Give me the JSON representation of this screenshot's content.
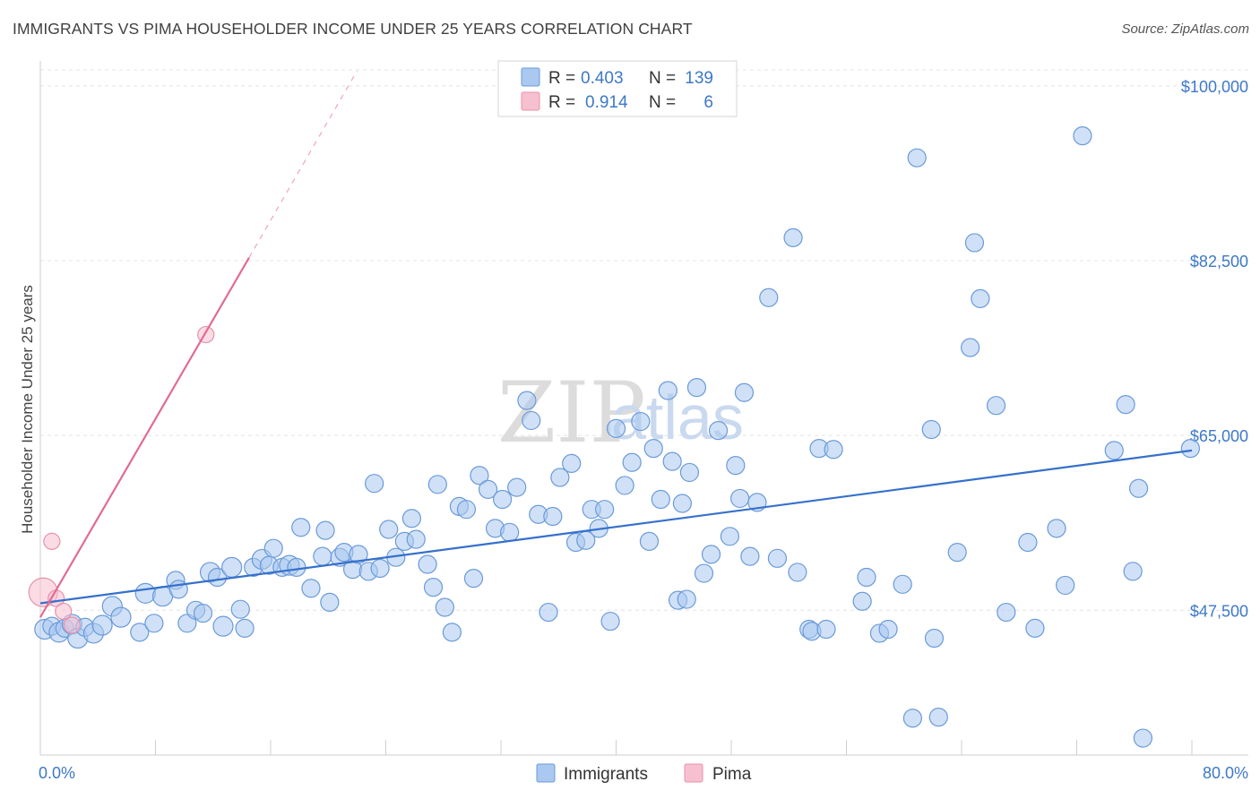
{
  "title": "IMMIGRANTS VS PIMA HOUSEHOLDER INCOME UNDER 25 YEARS CORRELATION CHART",
  "source": "Source: ZipAtlas.com",
  "watermark": {
    "zip": "ZIP",
    "atlas": "atlas"
  },
  "chart_data": {
    "type": "scatter",
    "ylabel": "Householder Income Under 25 years",
    "xlim": [
      0,
      80
    ],
    "ylim": [
      33000,
      102500
    ],
    "x_tick_labels": {
      "min": "0.0%",
      "max": "80.0%"
    },
    "y_ticks": [
      {
        "value": 100000,
        "label": "$100,000"
      },
      {
        "value": 82500,
        "label": "$82,500"
      },
      {
        "value": 65000,
        "label": "$65,000"
      },
      {
        "value": 47500,
        "label": "$47,500"
      }
    ],
    "grid": "horizontal dashed",
    "legend_position": "top-center",
    "legend": [
      {
        "r_label": "R =",
        "r_value": "0.403",
        "n_label": "N =",
        "n_value": "139"
      },
      {
        "r_label": "R =",
        "r_value": "0.914",
        "n_label": "N =",
        "n_value": "6"
      }
    ],
    "series": [
      {
        "name": "Immigrants",
        "color": "#aac8f0",
        "stroke": "#6a9ad8",
        "trend": {
          "x0": 0,
          "y0": 48200,
          "x1": 80,
          "y1": 63500,
          "color": "#3570cc"
        },
        "points": [
          [
            0.3,
            45600,
            11
          ],
          [
            0.8,
            45900,
            10
          ],
          [
            1.3,
            45300,
            11
          ],
          [
            1.7,
            45700,
            10
          ],
          [
            2.2,
            46100,
            11
          ],
          [
            2.6,
            44700,
            11
          ],
          [
            3.1,
            45800,
            10
          ],
          [
            3.7,
            45200,
            11
          ],
          [
            4.3,
            46000,
            11
          ],
          [
            5,
            47900,
            11
          ],
          [
            5.6,
            46800,
            11
          ],
          [
            6.9,
            45300,
            10
          ],
          [
            7.3,
            49200,
            11
          ],
          [
            7.9,
            46200,
            10
          ],
          [
            8.5,
            48900,
            11
          ],
          [
            9.4,
            50500,
            10
          ],
          [
            9.6,
            49600,
            10
          ],
          [
            10.2,
            46200,
            10
          ],
          [
            10.8,
            47500,
            10
          ],
          [
            11.3,
            47200,
            10
          ],
          [
            11.8,
            51300,
            11
          ],
          [
            12.3,
            50800,
            10
          ],
          [
            12.7,
            45900,
            11
          ],
          [
            13.3,
            51800,
            11
          ],
          [
            13.9,
            47600,
            10
          ],
          [
            14.2,
            45700,
            10
          ],
          [
            14.8,
            51800,
            10
          ],
          [
            15.4,
            52600,
            11
          ],
          [
            15.9,
            52000,
            10
          ],
          [
            16.2,
            53700,
            10
          ],
          [
            16.8,
            51800,
            10
          ],
          [
            17.3,
            52000,
            11
          ],
          [
            17.8,
            51800,
            10
          ],
          [
            18.1,
            55800,
            10
          ],
          [
            18.8,
            49700,
            10
          ],
          [
            19.6,
            52900,
            10
          ],
          [
            19.8,
            55500,
            10
          ],
          [
            20.1,
            48300,
            10
          ],
          [
            20.8,
            52800,
            10
          ],
          [
            21.1,
            53300,
            10
          ],
          [
            21.7,
            51600,
            10
          ],
          [
            22.1,
            53100,
            10
          ],
          [
            22.8,
            51400,
            10
          ],
          [
            23.2,
            60200,
            10
          ],
          [
            23.6,
            51700,
            10
          ],
          [
            24.2,
            55600,
            10
          ],
          [
            24.7,
            52800,
            10
          ],
          [
            25.3,
            54400,
            10
          ],
          [
            25.8,
            56700,
            10
          ],
          [
            26.1,
            54600,
            10
          ],
          [
            26.9,
            52100,
            10
          ],
          [
            27.3,
            49800,
            10
          ],
          [
            27.6,
            60100,
            10
          ],
          [
            28.1,
            47800,
            10
          ],
          [
            28.6,
            45300,
            10
          ],
          [
            29.1,
            57900,
            10
          ],
          [
            29.6,
            57600,
            10
          ],
          [
            30.1,
            50700,
            10
          ],
          [
            30.5,
            61000,
            10
          ],
          [
            31.1,
            59600,
            10
          ],
          [
            31.6,
            55700,
            10
          ],
          [
            32.1,
            58600,
            10
          ],
          [
            32.6,
            55300,
            10
          ],
          [
            33.1,
            59800,
            10
          ],
          [
            33.8,
            68500,
            10
          ],
          [
            34.1,
            66500,
            10
          ],
          [
            34.6,
            57100,
            10
          ],
          [
            35.3,
            47300,
            10
          ],
          [
            35.6,
            56900,
            10
          ],
          [
            36.1,
            60800,
            10
          ],
          [
            36.9,
            62200,
            10
          ],
          [
            37.2,
            54300,
            10
          ],
          [
            37.9,
            54500,
            10
          ],
          [
            38.3,
            57600,
            10
          ],
          [
            38.8,
            55700,
            10
          ],
          [
            39.2,
            57600,
            10
          ],
          [
            39.6,
            46400,
            10
          ],
          [
            40,
            65700,
            10
          ],
          [
            40.6,
            60000,
            10
          ],
          [
            41.1,
            62300,
            10
          ],
          [
            41.7,
            66400,
            10
          ],
          [
            42.3,
            54400,
            10
          ],
          [
            42.6,
            63700,
            10
          ],
          [
            43.1,
            58600,
            10
          ],
          [
            43.6,
            69500,
            10
          ],
          [
            43.9,
            62400,
            10
          ],
          [
            44.3,
            48500,
            10
          ],
          [
            44.6,
            58200,
            10
          ],
          [
            44.9,
            48600,
            10
          ],
          [
            45.1,
            61300,
            10
          ],
          [
            45.6,
            69800,
            10
          ],
          [
            46.1,
            51200,
            10
          ],
          [
            46.6,
            53100,
            10
          ],
          [
            47.1,
            65500,
            10
          ],
          [
            47.9,
            54900,
            10
          ],
          [
            48.3,
            62000,
            10
          ],
          [
            48.6,
            58700,
            10
          ],
          [
            48.9,
            69300,
            10
          ],
          [
            49.3,
            52900,
            10
          ],
          [
            49.8,
            58300,
            10
          ],
          [
            50.6,
            78800,
            10
          ],
          [
            51.2,
            52700,
            10
          ],
          [
            52.3,
            84800,
            10
          ],
          [
            52.6,
            51300,
            10
          ],
          [
            53.4,
            45600,
            10
          ],
          [
            53.6,
            45400,
            10
          ],
          [
            54.1,
            63700,
            10
          ],
          [
            54.6,
            45600,
            10
          ],
          [
            55.1,
            63600,
            10
          ],
          [
            57.1,
            48400,
            10
          ],
          [
            57.4,
            50800,
            10
          ],
          [
            58.3,
            45200,
            10
          ],
          [
            58.9,
            45600,
            10
          ],
          [
            59.9,
            50100,
            10
          ],
          [
            60.6,
            36700,
            10
          ],
          [
            60.9,
            92800,
            10
          ],
          [
            61.9,
            65600,
            10
          ],
          [
            62.1,
            44700,
            10
          ],
          [
            62.4,
            36800,
            10
          ],
          [
            63.7,
            53300,
            10
          ],
          [
            64.6,
            73800,
            10
          ],
          [
            64.9,
            84300,
            10
          ],
          [
            65.3,
            78700,
            10
          ],
          [
            66.4,
            68000,
            10
          ],
          [
            67.1,
            47300,
            10
          ],
          [
            68.6,
            54300,
            10
          ],
          [
            69.1,
            45700,
            10
          ],
          [
            70.6,
            55700,
            10
          ],
          [
            71.2,
            50000,
            10
          ],
          [
            72.4,
            95000,
            10
          ],
          [
            74.6,
            63500,
            10
          ],
          [
            75.4,
            68100,
            10
          ],
          [
            75.9,
            51400,
            10
          ],
          [
            76.3,
            59700,
            10
          ],
          [
            76.6,
            34700,
            10
          ],
          [
            79.9,
            63700,
            10
          ]
        ]
      },
      {
        "name": "Pima",
        "color": "#f7c0d0",
        "stroke": "#e891aa",
        "trend": {
          "x0": 0,
          "y0": 46800,
          "x1": 14.5,
          "y1": 82800,
          "dash_x1": 22,
          "dash_y1": 101500,
          "color": "#e06b94"
        },
        "points": [
          [
            0.2,
            49300,
            16
          ],
          [
            0.8,
            54400,
            9
          ],
          [
            1.1,
            48700,
            9
          ],
          [
            1.6,
            47400,
            9
          ],
          [
            2.2,
            46000,
            9
          ],
          [
            11.5,
            75100,
            9
          ]
        ]
      }
    ]
  }
}
